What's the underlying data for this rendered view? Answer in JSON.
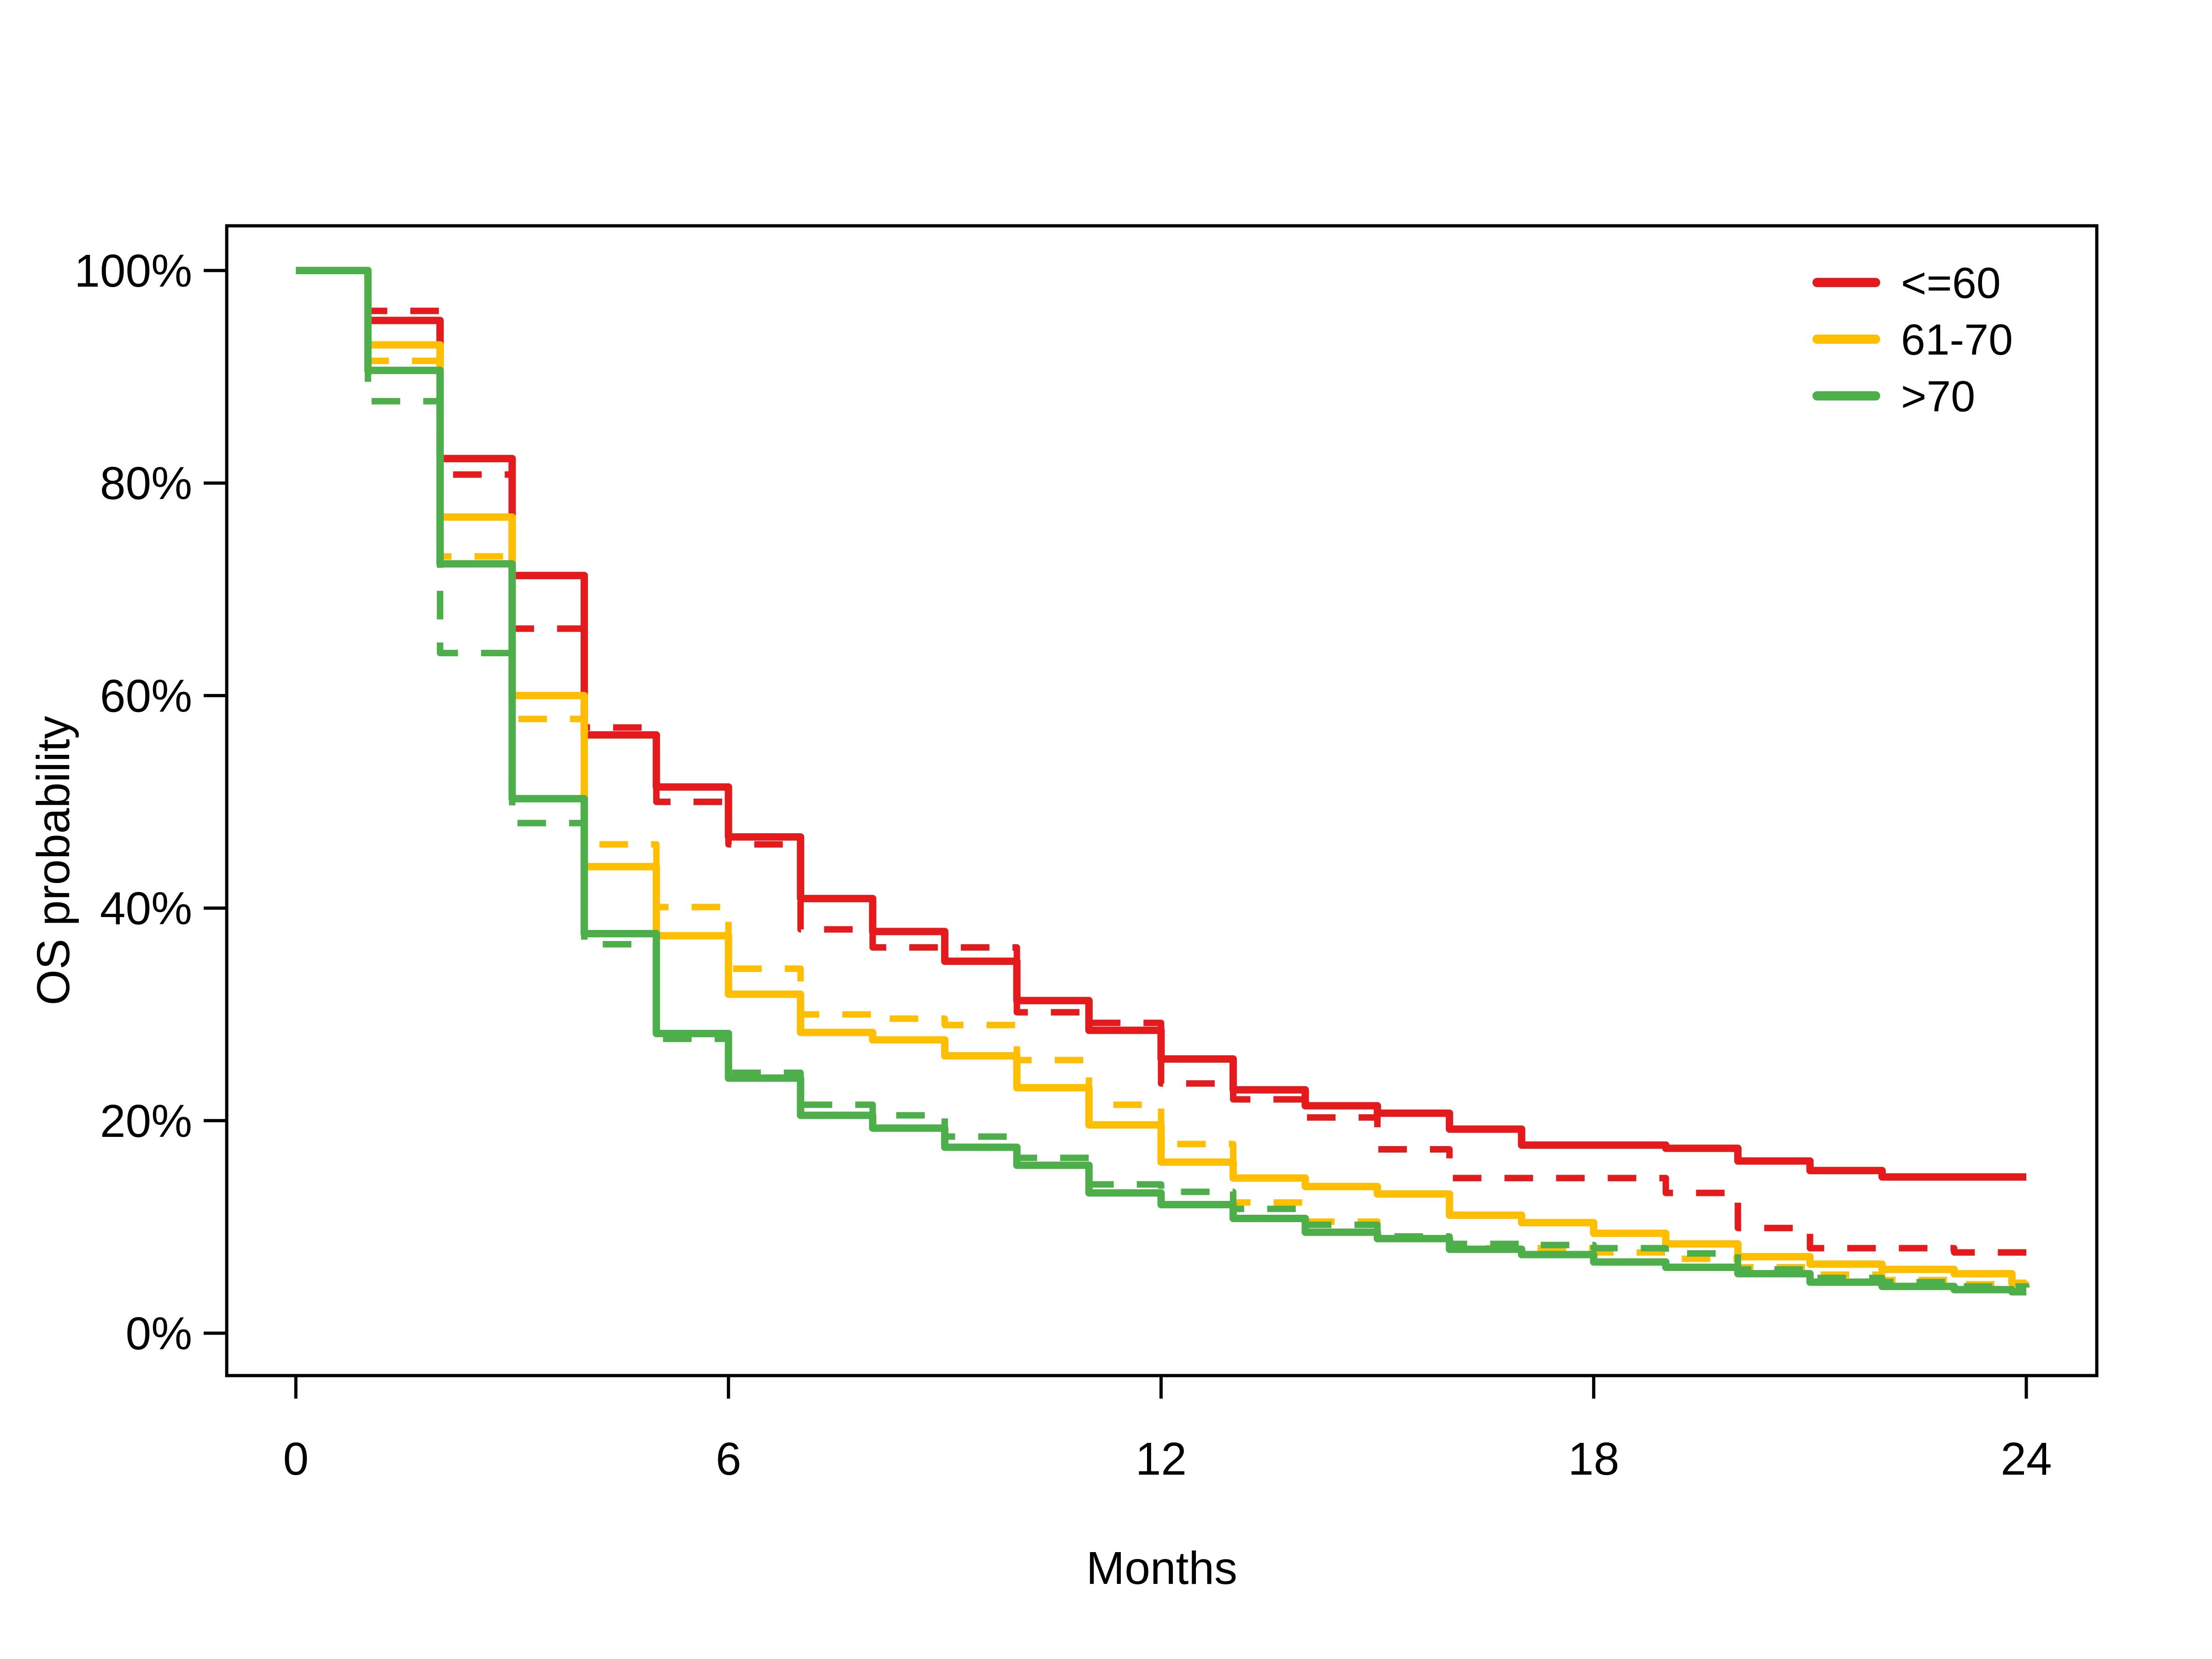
{
  "figure": {
    "background": "#ffffff",
    "axis_color": "#000000"
  },
  "chart_data": {
    "type": "line",
    "subtype": "kaplan-meier-step",
    "title": "",
    "xlabel": "Months",
    "ylabel": "OS probability",
    "xlim": [
      0,
      24
    ],
    "ylim": [
      0,
      100
    ],
    "grid": false,
    "x_ticks": [
      {
        "value": 0,
        "label": "0"
      },
      {
        "value": 6,
        "label": "6"
      },
      {
        "value": 12,
        "label": "12"
      },
      {
        "value": 18,
        "label": "18"
      },
      {
        "value": 24,
        "label": "24"
      }
    ],
    "y_ticks": [
      {
        "value": 0,
        "label": "0%"
      },
      {
        "value": 20,
        "label": "20%"
      },
      {
        "value": 40,
        "label": "40%"
      },
      {
        "value": 60,
        "label": "60%"
      },
      {
        "value": 80,
        "label": "80%"
      },
      {
        "value": 100,
        "label": "100%"
      }
    ],
    "legend": {
      "position": "top-right",
      "items": [
        {
          "label": "<=60",
          "color": "#e41a1c"
        },
        {
          "label": "61-70",
          "color": "#ffbf00"
        },
        {
          "label": ">70",
          "color": "#4daf4a"
        }
      ]
    },
    "series": [
      {
        "name": "le60-solid",
        "group": "<=60",
        "style": "solid",
        "color": "#e41a1c",
        "points": [
          [
            0,
            100
          ],
          [
            1,
            95.3
          ],
          [
            2,
            82.3
          ],
          [
            3,
            71.3
          ],
          [
            4,
            56.3
          ],
          [
            5,
            51.4
          ],
          [
            6,
            46.7
          ],
          [
            7,
            40.9
          ],
          [
            8,
            37.8
          ],
          [
            9,
            35.0
          ],
          [
            10,
            31.3
          ],
          [
            11,
            28.5
          ],
          [
            12,
            25.8
          ],
          [
            13,
            22.9
          ],
          [
            14,
            21.4
          ],
          [
            15,
            20.7
          ],
          [
            16,
            19.2
          ],
          [
            17,
            17.7
          ],
          [
            19,
            17.4
          ],
          [
            20,
            16.2
          ],
          [
            21,
            15.3
          ],
          [
            22,
            14.7
          ],
          [
            24,
            14.7
          ]
        ]
      },
      {
        "name": "le60-dashed",
        "group": "<=60",
        "style": "dashed",
        "color": "#e41a1c",
        "points": [
          [
            0,
            100
          ],
          [
            1,
            96.2
          ],
          [
            2,
            80.8
          ],
          [
            3,
            66.3
          ],
          [
            4,
            57.0
          ],
          [
            5,
            50.0
          ],
          [
            6,
            46.0
          ],
          [
            7,
            38.0
          ],
          [
            8,
            36.3
          ],
          [
            10,
            30.2
          ],
          [
            11,
            29.2
          ],
          [
            12,
            23.5
          ],
          [
            13,
            22.0
          ],
          [
            14,
            20.3
          ],
          [
            15,
            17.3
          ],
          [
            16,
            14.6
          ],
          [
            19,
            13.2
          ],
          [
            20,
            9.9
          ],
          [
            21,
            8.0
          ],
          [
            23,
            7.6
          ],
          [
            24,
            7.6
          ]
        ]
      },
      {
        "name": "61-70-solid",
        "group": "61-70",
        "style": "solid",
        "color": "#ffbf00",
        "points": [
          [
            0,
            100
          ],
          [
            1,
            93.0
          ],
          [
            2,
            76.8
          ],
          [
            3,
            60.0
          ],
          [
            4,
            43.9
          ],
          [
            5,
            37.4
          ],
          [
            6,
            31.9
          ],
          [
            7,
            28.3
          ],
          [
            8,
            27.6
          ],
          [
            9,
            26.1
          ],
          [
            10,
            23.1
          ],
          [
            11,
            19.6
          ],
          [
            12,
            16.1
          ],
          [
            13,
            14.6
          ],
          [
            14,
            13.8
          ],
          [
            15,
            13.1
          ],
          [
            16,
            11.1
          ],
          [
            17,
            10.4
          ],
          [
            18,
            9.4
          ],
          [
            19,
            8.4
          ],
          [
            20,
            7.2
          ],
          [
            21,
            6.5
          ],
          [
            22,
            6.0
          ],
          [
            23,
            5.6
          ],
          [
            23.8,
            4.7
          ],
          [
            24,
            4.7
          ]
        ]
      },
      {
        "name": "61-70-dashed",
        "group": "61-70",
        "style": "dashed",
        "color": "#ffbf00",
        "points": [
          [
            0,
            100
          ],
          [
            1,
            91.5
          ],
          [
            2,
            73.1
          ],
          [
            3,
            57.8
          ],
          [
            4,
            46.0
          ],
          [
            5,
            40.1
          ],
          [
            6,
            34.3
          ],
          [
            7,
            30.0
          ],
          [
            8,
            29.6
          ],
          [
            9,
            29.0
          ],
          [
            10,
            25.7
          ],
          [
            11,
            21.5
          ],
          [
            12,
            17.8
          ],
          [
            13,
            12.3
          ],
          [
            14,
            10.5
          ],
          [
            15,
            9.1
          ],
          [
            16,
            8.0
          ],
          [
            18,
            7.6
          ],
          [
            19,
            7.0
          ],
          [
            20,
            6.2
          ],
          [
            21,
            5.5
          ],
          [
            22,
            5.0
          ],
          [
            23,
            4.6
          ],
          [
            24,
            4.5
          ]
        ]
      },
      {
        "name": "gt70-solid",
        "group": ">70",
        "style": "solid",
        "color": "#4daf4a",
        "points": [
          [
            0,
            100
          ],
          [
            1,
            90.6
          ],
          [
            2,
            72.4
          ],
          [
            3,
            50.3
          ],
          [
            4,
            37.6
          ],
          [
            5,
            28.2
          ],
          [
            6,
            24.0
          ],
          [
            7,
            20.5
          ],
          [
            8,
            19.3
          ],
          [
            9,
            17.5
          ],
          [
            10,
            15.8
          ],
          [
            11,
            13.2
          ],
          [
            12,
            12.1
          ],
          [
            13,
            10.8
          ],
          [
            14,
            9.5
          ],
          [
            15,
            8.9
          ],
          [
            16,
            7.9
          ],
          [
            17,
            7.4
          ],
          [
            18,
            6.7
          ],
          [
            19,
            6.2
          ],
          [
            20,
            5.6
          ],
          [
            21,
            4.8
          ],
          [
            22,
            4.4
          ],
          [
            23,
            4.1
          ],
          [
            23.8,
            3.9
          ],
          [
            24,
            3.9
          ]
        ]
      },
      {
        "name": "gt70-dashed",
        "group": ">70",
        "style": "dashed",
        "color": "#4daf4a",
        "points": [
          [
            0,
            100
          ],
          [
            1,
            87.7
          ],
          [
            2,
            64.0
          ],
          [
            3,
            48.0
          ],
          [
            4,
            36.6
          ],
          [
            5,
            27.7
          ],
          [
            6,
            24.5
          ],
          [
            7,
            21.5
          ],
          [
            8,
            20.5
          ],
          [
            9,
            18.5
          ],
          [
            10,
            16.5
          ],
          [
            11,
            14.0
          ],
          [
            12,
            13.3
          ],
          [
            13,
            11.7
          ],
          [
            14,
            10.2
          ],
          [
            15,
            9.1
          ],
          [
            16,
            8.4
          ],
          [
            17,
            8.3
          ],
          [
            18,
            8.0
          ],
          [
            19,
            7.5
          ],
          [
            20,
            6.0
          ],
          [
            21,
            5.2
          ],
          [
            22,
            4.8
          ],
          [
            23,
            4.4
          ],
          [
            24,
            4.3
          ]
        ]
      }
    ]
  }
}
